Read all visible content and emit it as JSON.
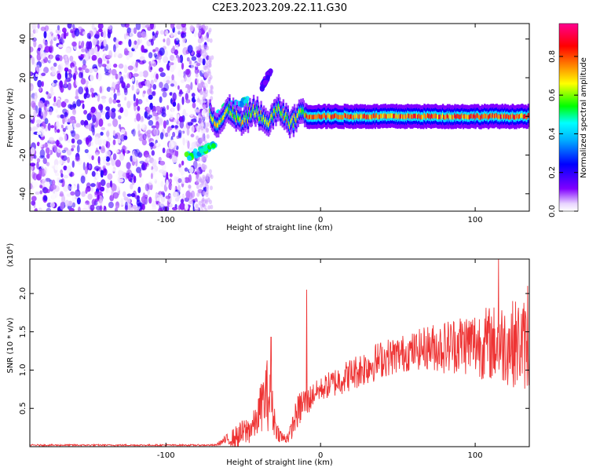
{
  "title": "C2E3.2023.209.22.11.G30",
  "chart_data": [
    {
      "type": "heatmap",
      "xlabel": "Height of straight line (km)",
      "ylabel": "Frequency (Hz)",
      "xlim": [
        -188,
        135
      ],
      "ylim": [
        -49,
        48
      ],
      "xticks": [
        -100,
        0,
        100
      ],
      "xtick_labels": [
        "-100",
        "0",
        "100"
      ],
      "yticks": [
        -40,
        -20,
        0,
        20,
        40
      ],
      "ytick_labels": [
        "-40",
        "-20",
        "0",
        "20",
        "40"
      ],
      "colorbar": {
        "label": "Normalized spectral amplitude",
        "range": [
          0.0,
          0.97
        ],
        "ticks": [
          0.0,
          0.2,
          0.4,
          0.6,
          0.8
        ],
        "tick_labels": [
          "0.0",
          "0.2",
          "0.4",
          "0.6",
          "0.8"
        ],
        "colormap": [
          "#ffffff",
          "#8000ff",
          "#0000ff",
          "#00ffff",
          "#00ff00",
          "#ffff00",
          "#ff8000",
          "#ff0000",
          "#ff00a0"
        ]
      },
      "regions": [
        {
          "name": "noise",
          "x_range": [
            -188,
            -73
          ],
          "y_range": [
            -49,
            48
          ],
          "amplitude": [
            0.0,
            0.2
          ]
        },
        {
          "name": "tone",
          "x_range": [
            -72,
            135
          ],
          "center_hz": 0,
          "amplitude": [
            0.3,
            0.95
          ]
        }
      ],
      "features": [
        {
          "x": [
            -87,
            -68
          ],
          "y": [
            -21,
            -15
          ],
          "amplitude": 0.55
        },
        {
          "x": [
            -67,
            -47
          ],
          "y": [
            3,
            8
          ],
          "amplitude": 0.5
        },
        {
          "x": [
            -38,
            -32
          ],
          "y": [
            15,
            24
          ],
          "amplitude": 0.2
        }
      ]
    },
    {
      "type": "line",
      "xlabel": "Height of straight line (km)",
      "ylabel": "SNR (10 * v/v)",
      "ylabel_multiplier": "(x10⁴)",
      "xlim": [
        -188,
        135
      ],
      "ylim": [
        0,
        2.45
      ],
      "xticks": [
        -100,
        0,
        100
      ],
      "xtick_labels": [
        "-100",
        "0",
        "100"
      ],
      "yticks": [
        0.5,
        1.0,
        1.5,
        2.0
      ],
      "ytick_labels": [
        "0.5",
        "1.0",
        "1.5",
        "2.0"
      ],
      "color": "#ee3333",
      "series": [
        {
          "envelope": {
            "x": [
              -188,
              -100,
              -68,
              -62,
              -55,
              -48,
              -42,
              -38,
              -34,
              -31,
              -28,
              -24,
              -20,
              -16,
              -12,
              -8,
              -4,
              0,
              10,
              20,
              30,
              40,
              50,
              60,
              70,
              80,
              90,
              100,
              110,
              120,
              130,
              135
            ],
            "mean": [
              0.02,
              0.02,
              0.02,
              0.08,
              0.12,
              0.2,
              0.3,
              0.55,
              0.7,
              0.45,
              0.2,
              0.1,
              0.15,
              0.4,
              0.55,
              0.6,
              0.7,
              0.75,
              0.85,
              0.95,
              1.05,
              1.15,
              1.2,
              1.25,
              1.3,
              1.3,
              1.35,
              1.35,
              1.35,
              1.35,
              1.35,
              1.3
            ],
            "amp": [
              0.01,
              0.01,
              0.01,
              0.06,
              0.15,
              0.2,
              0.2,
              0.35,
              0.5,
              0.3,
              0.12,
              0.08,
              0.1,
              0.2,
              0.25,
              0.2,
              0.15,
              0.15,
              0.2,
              0.22,
              0.25,
              0.25,
              0.25,
              0.25,
              0.3,
              0.35,
              0.4,
              0.45,
              0.5,
              0.55,
              0.6,
              0.6
            ]
          },
          "spikes": [
            {
              "x": -9,
              "y": 2.05
            },
            {
              "x": -32,
              "y": 1.43
            },
            {
              "x": 115,
              "y": 2.45
            },
            {
              "x": 134,
              "y": 2.1
            }
          ]
        }
      ]
    }
  ]
}
